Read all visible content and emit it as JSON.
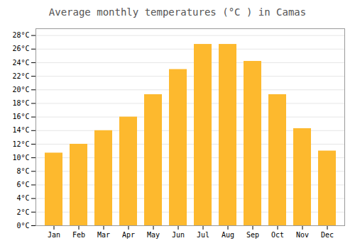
{
  "chart_data": {
    "type": "bar",
    "title": "Average monthly temperatures (°C ) in Camas",
    "categories": [
      "Jan",
      "Feb",
      "Mar",
      "Apr",
      "May",
      "Jun",
      "Jul",
      "Aug",
      "Sep",
      "Oct",
      "Nov",
      "Dec"
    ],
    "values": [
      10.7,
      12.0,
      14.0,
      16.0,
      19.3,
      23.0,
      26.7,
      26.7,
      24.2,
      19.3,
      14.3,
      11.0
    ],
    "color": "#FDB92E",
    "ylim": [
      0,
      29
    ],
    "yticks": [
      {
        "value": 0,
        "label": "0°C"
      },
      {
        "value": 2,
        "label": "2°C"
      },
      {
        "value": 4,
        "label": "4°C"
      },
      {
        "value": 6,
        "label": "6°C"
      },
      {
        "value": 8,
        "label": "8°C"
      },
      {
        "value": 10,
        "label": "10°C"
      },
      {
        "value": 12,
        "label": "12°C"
      },
      {
        "value": 14,
        "label": "14°C"
      },
      {
        "value": 16,
        "label": "16°C"
      },
      {
        "value": 18,
        "label": "18°C"
      },
      {
        "value": 20,
        "label": "20°C"
      },
      {
        "value": 22,
        "label": "22°C"
      },
      {
        "value": 24,
        "label": "24°C"
      },
      {
        "value": 26,
        "label": "26°C"
      },
      {
        "value": 28,
        "label": "28°C"
      }
    ],
    "grid": true
  }
}
